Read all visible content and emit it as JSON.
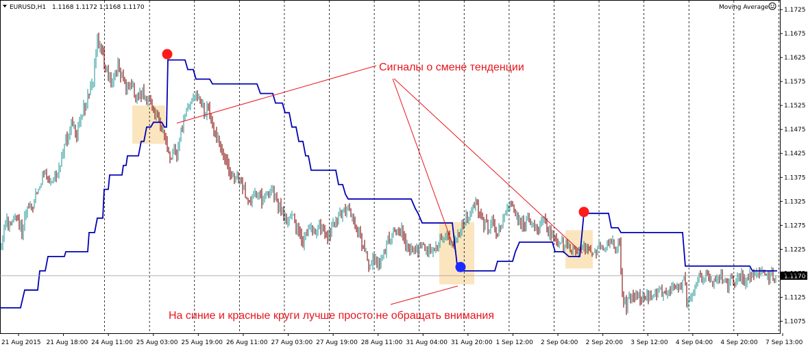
{
  "header": {
    "symbol": "EURUSD,H1",
    "ohlc": "1.1168 1.1172 1.1168 1.1170",
    "indicator": "Moving Average"
  },
  "annotations": {
    "signals": "Сигналы о смене тенденции",
    "ignore": "На синие и красные круги лучше просто не обращать внимания"
  },
  "colors": {
    "bull": "#3fa5a5",
    "bear": "#8b1a1a",
    "indicator": "#0000b4",
    "highlight": "#fbe2b8",
    "sell_signal": "#ff1a1a",
    "buy_signal": "#1a2cff",
    "annotation": "#e8141c"
  },
  "chart_data": {
    "type": "candlestick",
    "ylim": [
      1.105,
      1.1745
    ],
    "y_ticks": [
      "1.1725",
      "1.1675",
      "1.1625",
      "1.1575",
      "1.1525",
      "1.1475",
      "1.1425",
      "1.1375",
      "1.1325",
      "1.1275",
      "1.1225",
      "1.1175",
      "1.1125",
      "1.1075"
    ],
    "x_ticks": [
      "21 Aug 2015",
      "21 Aug 18:00",
      "24 Aug 11:00",
      "25 Aug 03:00",
      "25 Aug 19:00",
      "26 Aug 11:00",
      "27 Aug 03:00",
      "27 Aug 19:00",
      "28 Aug 11:00",
      "31 Aug 04:00",
      "31 Aug 20:00",
      "1 Sep 12:00",
      "2 Sep 04:00",
      "2 Sep 20:00",
      "3 Sep 12:00",
      "4 Sep 04:00",
      "4 Sep 20:00",
      "7 Sep 13:00"
    ],
    "current_price": "1.1170",
    "price_path": [
      [
        0,
        1.123
      ],
      [
        8,
        1.128
      ],
      [
        16,
        1.127
      ],
      [
        24,
        1.13
      ],
      [
        32,
        1.126
      ],
      [
        40,
        1.131
      ],
      [
        48,
        1.132
      ],
      [
        56,
        1.135
      ],
      [
        64,
        1.139
      ],
      [
        72,
        1.137
      ],
      [
        80,
        1.138
      ],
      [
        88,
        1.14
      ],
      [
        96,
        1.145
      ],
      [
        104,
        1.149
      ],
      [
        112,
        1.147
      ],
      [
        120,
        1.151
      ],
      [
        128,
        1.154
      ],
      [
        136,
        1.158
      ],
      [
        142,
        1.166
      ],
      [
        148,
        1.164
      ],
      [
        154,
        1.16
      ],
      [
        160,
        1.158
      ],
      [
        166,
        1.158
      ],
      [
        172,
        1.161
      ],
      [
        178,
        1.158
      ],
      [
        184,
        1.156
      ],
      [
        190,
        1.157
      ],
      [
        196,
        1.155
      ],
      [
        202,
        1.154
      ],
      [
        208,
        1.155
      ],
      [
        214,
        1.153
      ],
      [
        220,
        1.153
      ],
      [
        226,
        1.151
      ],
      [
        232,
        1.149
      ],
      [
        238,
        1.147
      ],
      [
        242,
        1.145
      ],
      [
        246,
        1.142
      ],
      [
        250,
        1.141
      ],
      [
        254,
        1.143
      ],
      [
        258,
        1.142
      ],
      [
        262,
        1.145
      ],
      [
        268,
        1.15
      ],
      [
        274,
        1.152
      ],
      [
        280,
        1.154
      ],
      [
        286,
        1.155
      ],
      [
        292,
        1.153
      ],
      [
        298,
        1.151
      ],
      [
        304,
        1.152
      ],
      [
        310,
        1.148
      ],
      [
        316,
        1.146
      ],
      [
        322,
        1.143
      ],
      [
        328,
        1.141
      ],
      [
        334,
        1.139
      ],
      [
        340,
        1.137
      ],
      [
        346,
        1.138
      ],
      [
        352,
        1.136
      ],
      [
        358,
        1.134
      ],
      [
        364,
        1.132
      ],
      [
        370,
        1.133
      ],
      [
        376,
        1.134
      ],
      [
        382,
        1.133
      ],
      [
        388,
        1.134
      ],
      [
        394,
        1.135
      ],
      [
        400,
        1.134
      ],
      [
        406,
        1.132
      ],
      [
        412,
        1.13
      ],
      [
        418,
        1.128
      ],
      [
        424,
        1.13
      ],
      [
        430,
        1.128
      ],
      [
        436,
        1.126
      ],
      [
        442,
        1.124
      ],
      [
        448,
        1.126
      ],
      [
        454,
        1.127
      ],
      [
        460,
        1.126
      ],
      [
        466,
        1.127
      ],
      [
        472,
        1.126
      ],
      [
        478,
        1.125
      ],
      [
        484,
        1.127
      ],
      [
        490,
        1.128
      ],
      [
        496,
        1.129
      ],
      [
        502,
        1.131
      ],
      [
        508,
        1.13
      ],
      [
        514,
        1.129
      ],
      [
        520,
        1.127
      ],
      [
        526,
        1.125
      ],
      [
        532,
        1.123
      ],
      [
        538,
        1.119
      ],
      [
        544,
        1.121
      ],
      [
        550,
        1.119
      ],
      [
        556,
        1.12
      ],
      [
        562,
        1.122
      ],
      [
        568,
        1.125
      ],
      [
        574,
        1.126
      ],
      [
        580,
        1.127
      ],
      [
        586,
        1.126
      ],
      [
        592,
        1.123
      ],
      [
        598,
        1.122
      ],
      [
        604,
        1.123
      ],
      [
        610,
        1.122
      ],
      [
        616,
        1.124
      ],
      [
        622,
        1.123
      ],
      [
        628,
        1.121
      ],
      [
        634,
        1.122
      ],
      [
        640,
        1.124
      ],
      [
        646,
        1.125
      ],
      [
        652,
        1.125
      ],
      [
        658,
        1.123
      ],
      [
        664,
        1.124
      ],
      [
        670,
        1.126
      ],
      [
        676,
        1.128
      ],
      [
        682,
        1.129
      ],
      [
        688,
        1.131
      ],
      [
        694,
        1.132
      ],
      [
        700,
        1.129
      ],
      [
        706,
        1.128
      ],
      [
        712,
        1.127
      ],
      [
        718,
        1.128
      ],
      [
        724,
        1.126
      ],
      [
        730,
        1.127
      ],
      [
        736,
        1.129
      ],
      [
        742,
        1.131
      ],
      [
        748,
        1.132
      ],
      [
        754,
        1.129
      ],
      [
        760,
        1.128
      ],
      [
        766,
        1.128
      ],
      [
        772,
        1.129
      ],
      [
        778,
        1.128
      ],
      [
        784,
        1.127
      ],
      [
        790,
        1.129
      ],
      [
        796,
        1.128
      ],
      [
        802,
        1.126
      ],
      [
        808,
        1.125
      ],
      [
        814,
        1.124
      ],
      [
        820,
        1.124
      ],
      [
        826,
        1.123
      ],
      [
        832,
        1.123
      ],
      [
        838,
        1.122
      ],
      [
        844,
        1.122
      ],
      [
        850,
        1.123
      ],
      [
        856,
        1.123
      ],
      [
        862,
        1.122
      ],
      [
        868,
        1.122
      ],
      [
        874,
        1.123
      ],
      [
        880,
        1.123
      ],
      [
        886,
        1.124
      ],
      [
        892,
        1.124
      ],
      [
        898,
        1.123
      ],
      [
        904,
        1.124
      ],
      [
        908,
        1.112
      ],
      [
        914,
        1.111
      ],
      [
        920,
        1.112
      ],
      [
        926,
        1.113
      ],
      [
        932,
        1.113
      ],
      [
        938,
        1.112
      ],
      [
        944,
        1.113
      ],
      [
        950,
        1.112
      ],
      [
        956,
        1.113
      ],
      [
        962,
        1.114
      ],
      [
        968,
        1.113
      ],
      [
        974,
        1.114
      ],
      [
        980,
        1.114
      ],
      [
        986,
        1.115
      ],
      [
        992,
        1.114
      ],
      [
        998,
        1.117
      ],
      [
        1002,
        1.112
      ],
      [
        1008,
        1.113
      ],
      [
        1014,
        1.115
      ],
      [
        1020,
        1.117
      ],
      [
        1026,
        1.116
      ],
      [
        1032,
        1.117
      ],
      [
        1038,
        1.115
      ],
      [
        1044,
        1.116
      ],
      [
        1050,
        1.117
      ],
      [
        1056,
        1.116
      ],
      [
        1062,
        1.115
      ],
      [
        1068,
        1.116
      ],
      [
        1074,
        1.115
      ],
      [
        1080,
        1.117
      ],
      [
        1086,
        1.116
      ],
      [
        1092,
        1.117
      ],
      [
        1098,
        1.117
      ],
      [
        1104,
        1.117
      ],
      [
        1110,
        1.117
      ],
      [
        1116,
        1.117
      ],
      [
        1122,
        1.117
      ],
      [
        1128,
        1.117
      ],
      [
        1133,
        1.117
      ]
    ],
    "indicator_line": [
      [
        0,
        1.1103
      ],
      [
        30,
        1.1103
      ],
      [
        36,
        1.114
      ],
      [
        55,
        1.114
      ],
      [
        58,
        1.118
      ],
      [
        66,
        1.118
      ],
      [
        70,
        1.121
      ],
      [
        94,
        1.121
      ],
      [
        96,
        1.122
      ],
      [
        128,
        1.122
      ],
      [
        130,
        1.126
      ],
      [
        138,
        1.126
      ],
      [
        142,
        1.129
      ],
      [
        150,
        1.129
      ],
      [
        152,
        1.135
      ],
      [
        158,
        1.135
      ],
      [
        160,
        1.138
      ],
      [
        178,
        1.138
      ],
      [
        180,
        1.14
      ],
      [
        184,
        1.14
      ],
      [
        186,
        1.142
      ],
      [
        202,
        1.142
      ],
      [
        206,
        1.145
      ],
      [
        210,
        1.145
      ],
      [
        214,
        1.148
      ],
      [
        220,
        1.148
      ],
      [
        224,
        1.149
      ],
      [
        236,
        1.149
      ],
      [
        240,
        1.148
      ],
      [
        243,
        1.148
      ],
      [
        245,
        1.162
      ],
      [
        270,
        1.162
      ],
      [
        274,
        1.16
      ],
      [
        282,
        1.16
      ],
      [
        286,
        1.158
      ],
      [
        306,
        1.158
      ],
      [
        310,
        1.157
      ],
      [
        375,
        1.157
      ],
      [
        380,
        1.155
      ],
      [
        398,
        1.155
      ],
      [
        402,
        1.153
      ],
      [
        412,
        1.153
      ],
      [
        416,
        1.151
      ],
      [
        422,
        1.151
      ],
      [
        426,
        1.148
      ],
      [
        432,
        1.148
      ],
      [
        436,
        1.145
      ],
      [
        442,
        1.145
      ],
      [
        446,
        1.142
      ],
      [
        450,
        1.142
      ],
      [
        454,
        1.139
      ],
      [
        490,
        1.139
      ],
      [
        494,
        1.136
      ],
      [
        500,
        1.136
      ],
      [
        504,
        1.134
      ],
      [
        508,
        1.133
      ],
      [
        514,
        1.133
      ],
      [
        600,
        1.133
      ],
      [
        606,
        1.131
      ],
      [
        610,
        1.13
      ],
      [
        616,
        1.128
      ],
      [
        660,
        1.128
      ],
      [
        668,
        1.118
      ],
      [
        672,
        1.118
      ],
      [
        690,
        1.118
      ],
      [
        722,
        1.118
      ],
      [
        726,
        1.12
      ],
      [
        748,
        1.12
      ],
      [
        752,
        1.122
      ],
      [
        758,
        1.124
      ],
      [
        806,
        1.124
      ],
      [
        810,
        1.122
      ],
      [
        822,
        1.122
      ],
      [
        830,
        1.121
      ],
      [
        846,
        1.121
      ],
      [
        852,
        1.13
      ],
      [
        888,
        1.13
      ],
      [
        892,
        1.127
      ],
      [
        902,
        1.127
      ],
      [
        906,
        1.126
      ],
      [
        996,
        1.126
      ],
      [
        1000,
        1.119
      ],
      [
        1094,
        1.119
      ],
      [
        1098,
        1.118
      ],
      [
        1134,
        1.118
      ]
    ],
    "sell_signals": [
      [
        244,
        1.1632
      ],
      [
        852,
        1.1303
      ]
    ],
    "buy_signals": [
      [
        672,
        1.1188
      ]
    ],
    "highlight_zones": [
      [
        193,
        241,
        1.1525,
        1.1445
      ],
      [
        641,
        692,
        1.1282,
        1.1152
      ],
      [
        825,
        865,
        1.1265,
        1.1185
      ]
    ]
  }
}
